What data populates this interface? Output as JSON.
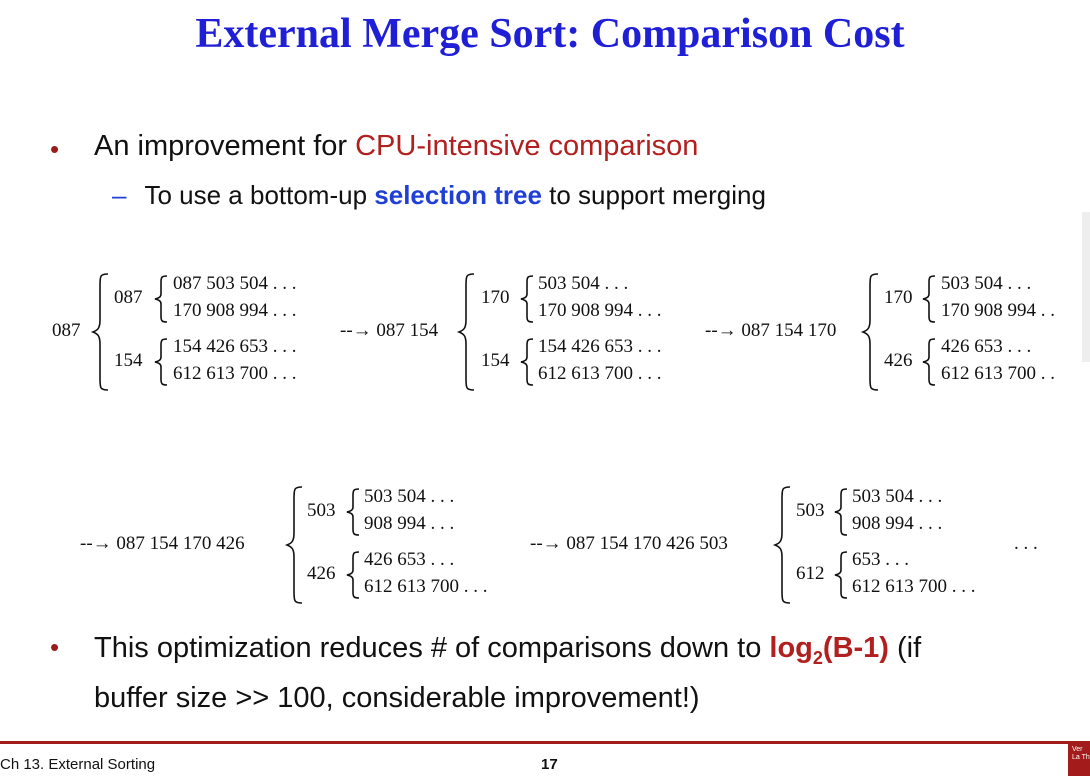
{
  "slide": {
    "title": "External Merge Sort: Comparison Cost",
    "bullet1": {
      "text_before": "An improvement for ",
      "highlight": "CPU-intensive comparison"
    },
    "sub1": {
      "dash": "–",
      "text_before": "To use a bottom-up ",
      "highlight": "selection tree",
      "text_after": " to support merging"
    },
    "bullet2": {
      "text_before": "This optimization reduces # of comparisons down to ",
      "highlight_main": "log",
      "highlight_sub": "2",
      "highlight_rest": "(B-1)",
      "text_after": " (if",
      "line2": "buffer size >> 100, considerable improvement!)"
    },
    "bullet_glyph": "•"
  },
  "trees": {
    "t1": {
      "root": "087",
      "n1": "087",
      "n2": "154",
      "r1": "087 503 504 . . .",
      "r2": "170 908 994 . . .",
      "r3": "154 426 653 . . .",
      "r4": "612 613 700 . . ."
    },
    "arrow1": "--→ 087 154",
    "t2": {
      "n1": "170",
      "n2": "154",
      "r1": "503 504 . . .",
      "r2": "170 908 994 . . .",
      "r3": "154 426 653 . . .",
      "r4": "612 613 700 . . ."
    },
    "arrow2": "--→ 087 154 170",
    "t3": {
      "n1": "170",
      "n2": "426",
      "r1": "503 504 . . .",
      "r2": "170 908 994 . .",
      "r3": "426 653 . . .",
      "r4": "612 613 700 . ."
    },
    "arrow3": "--→ 087 154 170 426",
    "t4": {
      "n1": "503",
      "n2": "426",
      "r1": "503 504 . . .",
      "r2": "908 994 . . .",
      "r3": "426 653 . . .",
      "r4": "612 613 700 . . ."
    },
    "arrow4": "--→ 087 154 170 426 503",
    "t5": {
      "n1": "503",
      "n2": "612",
      "r1": "503 504 . . .",
      "r2": "908 994 . . .",
      "r3": "653 . . .",
      "r4": "612 613 700 . . ."
    },
    "ellipsis": ". . ."
  },
  "footer": {
    "chapter": "Ch 13. External Sorting",
    "page": "17",
    "logo_text": "Ver La Th"
  },
  "colors": {
    "title": "#1f1fd6",
    "accent_red": "#b11f1f",
    "accent_blue": "#1f3fd6",
    "footer_line": "#a31c1c"
  }
}
